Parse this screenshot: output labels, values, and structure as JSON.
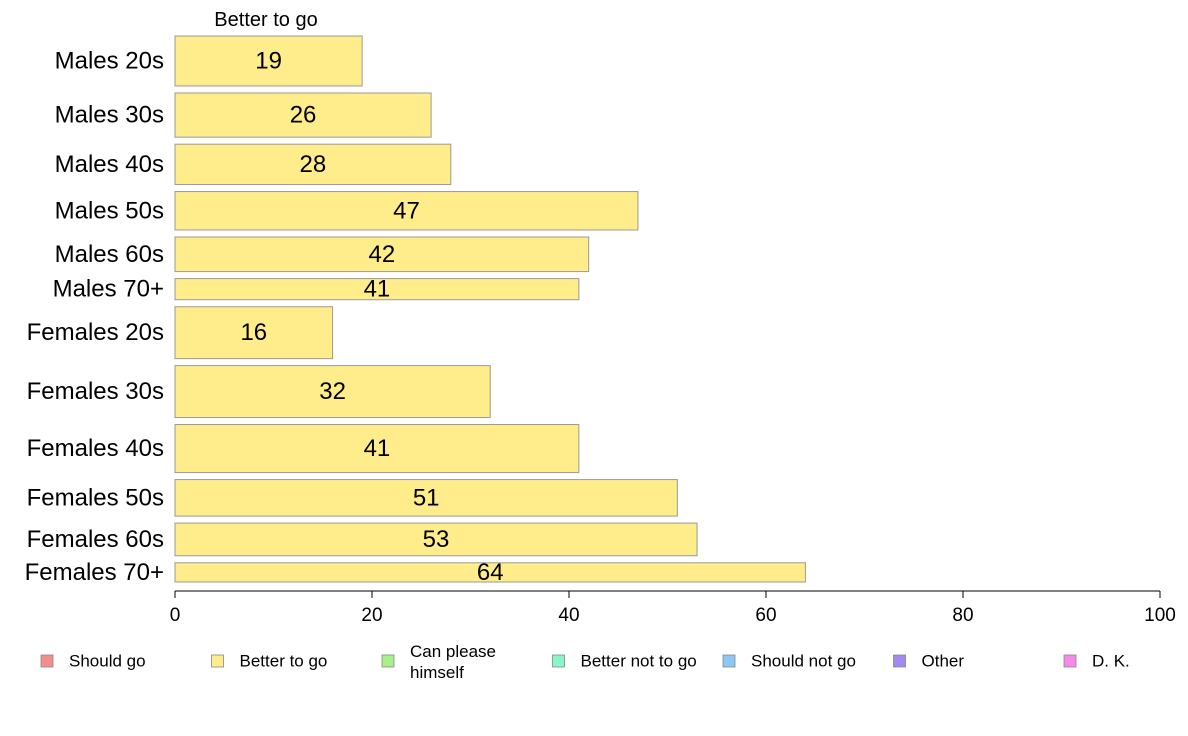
{
  "chart_data": {
    "type": "bar",
    "orientation": "horizontal",
    "stacked": true,
    "column_title": "Better to go",
    "categories": [
      "Males 20s",
      "Males 30s",
      "Males 40s",
      "Males 50s",
      "Males 60s",
      "Males 70+",
      "Females 20s",
      "Females 30s",
      "Females 40s",
      "Females 50s",
      "Females 60s",
      "Females 70+"
    ],
    "bar_height_weights": [
      1.3,
      1.15,
      1.05,
      1.0,
      0.9,
      0.55,
      1.35,
      1.35,
      1.25,
      0.95,
      0.85,
      0.5
    ],
    "series": [
      {
        "name": "Better to go",
        "color": "#FFEC8B",
        "values": [
          19,
          26,
          28,
          47,
          42,
          41,
          16,
          32,
          41,
          51,
          53,
          64
        ]
      }
    ],
    "xlim": [
      0,
      100
    ],
    "xticks": [
      0,
      20,
      40,
      60,
      80,
      100
    ],
    "grid": false,
    "legend_position": "bottom",
    "legend": [
      {
        "label": "Should go",
        "color": "#F28E8E"
      },
      {
        "label": "Better to go",
        "color": "#FFEC8B"
      },
      {
        "label": "Can please himself",
        "lines": [
          "Can please",
          "himself"
        ],
        "color": "#A8F08A"
      },
      {
        "label": "Better not to go",
        "color": "#8AF5C8"
      },
      {
        "label": "Should not go",
        "color": "#8CC8F5"
      },
      {
        "label": "Other",
        "color": "#A48AF0"
      },
      {
        "label": "D. K.",
        "color": "#F58AE8"
      }
    ]
  }
}
